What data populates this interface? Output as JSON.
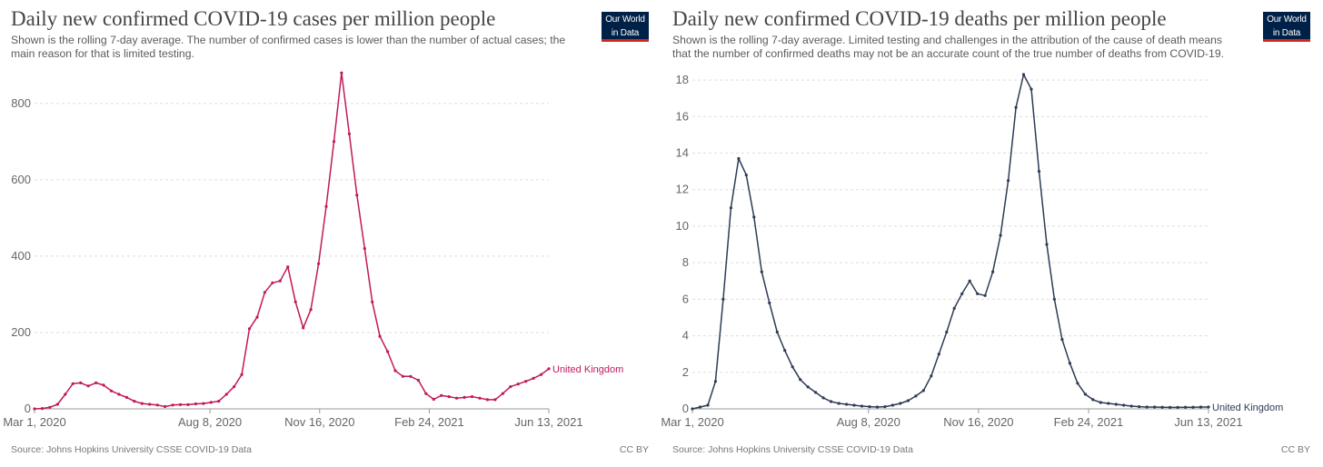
{
  "chart_data": [
    {
      "type": "line",
      "title": "Daily new confirmed COVID-19 cases per million people",
      "subtitle": "Shown is the rolling 7-day average. The number of confirmed cases is lower than the number of actual cases; the main reason for that is limited testing.",
      "source": "Source: Johns Hopkins University CSSE COVID-19 Data",
      "license": "CC BY",
      "logo": [
        "Our World",
        "in Data"
      ],
      "color": "#c2185b",
      "grid": true,
      "xlabel": "",
      "ylabel": "",
      "xlim": [
        0,
        469
      ],
      "ylim": [
        0,
        890
      ],
      "yticks": [
        {
          "value": 0,
          "label": "0"
        },
        {
          "value": 200,
          "label": "200"
        },
        {
          "value": 400,
          "label": "400"
        },
        {
          "value": 600,
          "label": "600"
        },
        {
          "value": 800,
          "label": "800"
        }
      ],
      "xticks": [
        {
          "value": 0,
          "label": "Mar 1, 2020"
        },
        {
          "value": 160,
          "label": "Aug 8, 2020"
        },
        {
          "value": 260,
          "label": "Nov 16, 2020"
        },
        {
          "value": 360,
          "label": "Feb 24, 2021"
        },
        {
          "value": 469,
          "label": "Jun 13, 2021"
        }
      ],
      "series": [
        {
          "name": "United Kingdom",
          "x": [
            0,
            7,
            14,
            21,
            28,
            35,
            42,
            49,
            56,
            63,
            70,
            77,
            84,
            91,
            98,
            105,
            112,
            119,
            126,
            133,
            140,
            147,
            154,
            161,
            168,
            175,
            182,
            189,
            196,
            203,
            210,
            217,
            224,
            231,
            238,
            245,
            252,
            259,
            266,
            273,
            280,
            287,
            294,
            301,
            308,
            315,
            322,
            329,
            336,
            343,
            350,
            357,
            364,
            371,
            378,
            385,
            392,
            399,
            406,
            413,
            420,
            427,
            434,
            441,
            448,
            455,
            462,
            469
          ],
          "values": [
            0,
            1,
            4,
            12,
            38,
            66,
            68,
            60,
            68,
            62,
            47,
            38,
            30,
            20,
            14,
            12,
            10,
            6,
            10,
            11,
            11,
            13,
            14,
            17,
            20,
            38,
            58,
            90,
            210,
            240,
            305,
            330,
            335,
            372,
            280,
            212,
            260,
            380,
            530,
            700,
            880,
            720,
            560,
            420,
            280,
            190,
            150,
            100,
            85,
            85,
            75,
            40,
            25,
            35,
            32,
            28,
            30,
            32,
            28,
            24,
            24,
            40,
            58,
            65,
            72,
            80,
            90,
            105
          ]
        }
      ]
    },
    {
      "type": "line",
      "title": "Daily new confirmed COVID-19 deaths per million people",
      "subtitle": "Shown is the rolling 7-day average. Limited testing and challenges in the attribution of the cause of death means that the number of confirmed deaths may not be an accurate count of the true number of deaths from COVID-19.",
      "source": "Source: Johns Hopkins University CSSE COVID-19 Data",
      "license": "CC BY",
      "logo": [
        "Our World",
        "in Data"
      ],
      "color": "#2d3b55",
      "grid": true,
      "xlabel": "",
      "ylabel": "",
      "xlim": [
        0,
        469
      ],
      "ylim": [
        0,
        18.6
      ],
      "yticks": [
        {
          "value": 0,
          "label": "0"
        },
        {
          "value": 2,
          "label": "2"
        },
        {
          "value": 4,
          "label": "4"
        },
        {
          "value": 6,
          "label": "6"
        },
        {
          "value": 8,
          "label": "8"
        },
        {
          "value": 10,
          "label": "10"
        },
        {
          "value": 12,
          "label": "12"
        },
        {
          "value": 14,
          "label": "14"
        },
        {
          "value": 16,
          "label": "16"
        },
        {
          "value": 18,
          "label": "18"
        }
      ],
      "xticks": [
        {
          "value": 0,
          "label": "Mar 1, 2020"
        },
        {
          "value": 160,
          "label": "Aug 8, 2020"
        },
        {
          "value": 260,
          "label": "Nov 16, 2020"
        },
        {
          "value": 360,
          "label": "Feb 24, 2021"
        },
        {
          "value": 469,
          "label": "Jun 13, 2021"
        }
      ],
      "series": [
        {
          "name": "United Kingdom",
          "x": [
            0,
            7,
            14,
            21,
            28,
            35,
            42,
            49,
            56,
            63,
            70,
            77,
            84,
            91,
            98,
            105,
            112,
            119,
            126,
            133,
            140,
            147,
            154,
            161,
            168,
            175,
            182,
            189,
            196,
            203,
            210,
            217,
            224,
            231,
            238,
            245,
            252,
            259,
            266,
            273,
            280,
            287,
            294,
            301,
            308,
            315,
            322,
            329,
            336,
            343,
            350,
            357,
            364,
            371,
            378,
            385,
            392,
            399,
            406,
            413,
            420,
            427,
            434,
            441,
            448,
            455,
            462,
            469
          ],
          "values": [
            0,
            0.1,
            0.2,
            1.5,
            6.0,
            11.0,
            13.7,
            12.8,
            10.5,
            7.5,
            5.8,
            4.2,
            3.2,
            2.3,
            1.6,
            1.2,
            0.9,
            0.6,
            0.4,
            0.3,
            0.25,
            0.2,
            0.15,
            0.12,
            0.1,
            0.12,
            0.2,
            0.3,
            0.45,
            0.7,
            1.0,
            1.8,
            3.0,
            4.2,
            5.5,
            6.3,
            7.0,
            6.3,
            6.2,
            7.5,
            9.5,
            12.5,
            16.5,
            18.3,
            17.5,
            13.0,
            9.0,
            6.0,
            3.8,
            2.5,
            1.4,
            0.8,
            0.5,
            0.35,
            0.3,
            0.25,
            0.2,
            0.15,
            0.12,
            0.1,
            0.1,
            0.09,
            0.08,
            0.08,
            0.09,
            0.09,
            0.1,
            0.1
          ]
        }
      ]
    }
  ]
}
